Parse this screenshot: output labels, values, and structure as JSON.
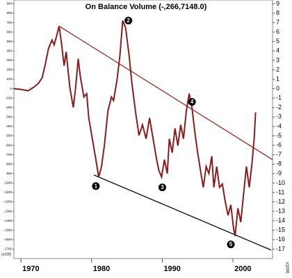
{
  "chart_data": {
    "type": "line",
    "title": "On Balance Volume (-,266,7148.0)",
    "y_label": "x1000",
    "y2_label": "[x100]",
    "x": [
      1969.0,
      1970.0,
      1971.0,
      1971.8,
      1972.5,
      1973.0,
      1973.4,
      1973.9,
      1974.4,
      1974.7,
      1975.1,
      1975.4,
      1975.7,
      1976.1,
      1976.4,
      1976.9,
      1977.4,
      1977.7,
      1978.1,
      1978.4,
      1978.9,
      1979.3,
      1979.6,
      1980.1,
      1980.6,
      1981.0,
      1981.4,
      1981.8,
      1982.3,
      1982.8,
      1983.1,
      1983.6,
      1984.0,
      1984.4,
      1984.8,
      1985.3,
      1985.7,
      1986.2,
      1986.7,
      1987.2,
      1987.7,
      1988.2,
      1988.7,
      1989.2,
      1989.5,
      1989.9,
      1990.3,
      1990.7,
      1991.0,
      1991.4,
      1991.8,
      1992.2,
      1992.6,
      1993.0,
      1993.4,
      1993.8,
      1994.2,
      1994.6,
      1995.0,
      1995.4,
      1995.8,
      1996.2,
      1996.6,
      1997.0,
      1997.3,
      1997.7,
      1998.1,
      1998.5,
      1998.9,
      1999.3,
      1999.7,
      2000.1,
      2000.3,
      2000.7,
      2001.1,
      2001.5,
      2001.9,
      2002.3,
      2002.7,
      2003.0,
      2003.2
    ],
    "series": [
      {
        "color": "#8b1a1a",
        "values": [
          0,
          -0.07,
          -0.22,
          0.15,
          0.59,
          1.18,
          2.43,
          4.27,
          5.16,
          4.64,
          5.75,
          6.63,
          5.01,
          2.43,
          3.91,
          0.22,
          -1.99,
          -0.15,
          3.17,
          1.33,
          -0.88,
          -0.52,
          -3.1,
          -5.31,
          -7.52,
          -9.36,
          -8.25,
          -6.04,
          -2.36,
          -0.88,
          -1.25,
          0.96,
          3.54,
          7.22,
          6.48,
          3.54,
          0.59,
          -2.36,
          -4.94,
          -3.83,
          -5.31,
          -3.1,
          -5.31,
          -7.52,
          -8.62,
          -9.36,
          -7.52,
          -8.99,
          -5.31,
          -6.78,
          -4.2,
          -6.04,
          -3.83,
          -5.31,
          -2.36,
          -0.52,
          -1.99,
          -4.57,
          -6.78,
          -8.62,
          -10.46,
          -8.25,
          -8.99,
          -7.15,
          -10.46,
          -8.25,
          -10.46,
          -10.1,
          -11.94,
          -13.41,
          -12.31,
          -14.89,
          -15.62,
          -12.67,
          -14.15,
          -11.2,
          -8.25,
          -10.46,
          -7.88,
          -5.31,
          -2.51
        ]
      }
    ],
    "trendlines": [
      {
        "color": "#9c2a24",
        "x": [
          1975.4,
          2005.6
        ],
        "y": [
          6.63,
          -7.52
        ]
      },
      {
        "color": "#000000",
        "x": [
          1980.3,
          2005.4
        ],
        "y": [
          -9.14,
          -17.1
        ]
      }
    ],
    "annotations": [
      {
        "text": "1",
        "x": 1980.6,
        "y": -10.32
      },
      {
        "text": "2",
        "x": 1985.2,
        "y": 7.22
      },
      {
        "text": "3",
        "x": 1990.0,
        "y": -10.46
      },
      {
        "text": "4",
        "x": 1994.2,
        "y": -1.4
      },
      {
        "text": "5",
        "x": 1999.7,
        "y": -16.5
      }
    ],
    "xlim": [
      1969.0,
      2005.6
    ],
    "xticks": [
      1970,
      1980,
      1990,
      2000
    ],
    "ylim": [
      -18,
      9.4
    ],
    "yticks": [
      9,
      8,
      7,
      6,
      5,
      4,
      3,
      2,
      1,
      0,
      -1,
      -2,
      -3,
      -4,
      -5,
      -6,
      -7,
      -8,
      -9,
      -10,
      -11,
      -12,
      -13,
      -14,
      -15,
      -16,
      -17
    ],
    "y2lim": [
      -1800,
      940
    ],
    "y2ticks": [
      900,
      800,
      700,
      600,
      500,
      400,
      300,
      200,
      100,
      0,
      -100,
      -200,
      -300,
      -400,
      -500,
      -600,
      -700,
      -800,
      -900,
      -1000,
      -1100,
      -1200,
      -1300,
      -1400,
      -1500,
      -1600,
      -1700
    ]
  }
}
